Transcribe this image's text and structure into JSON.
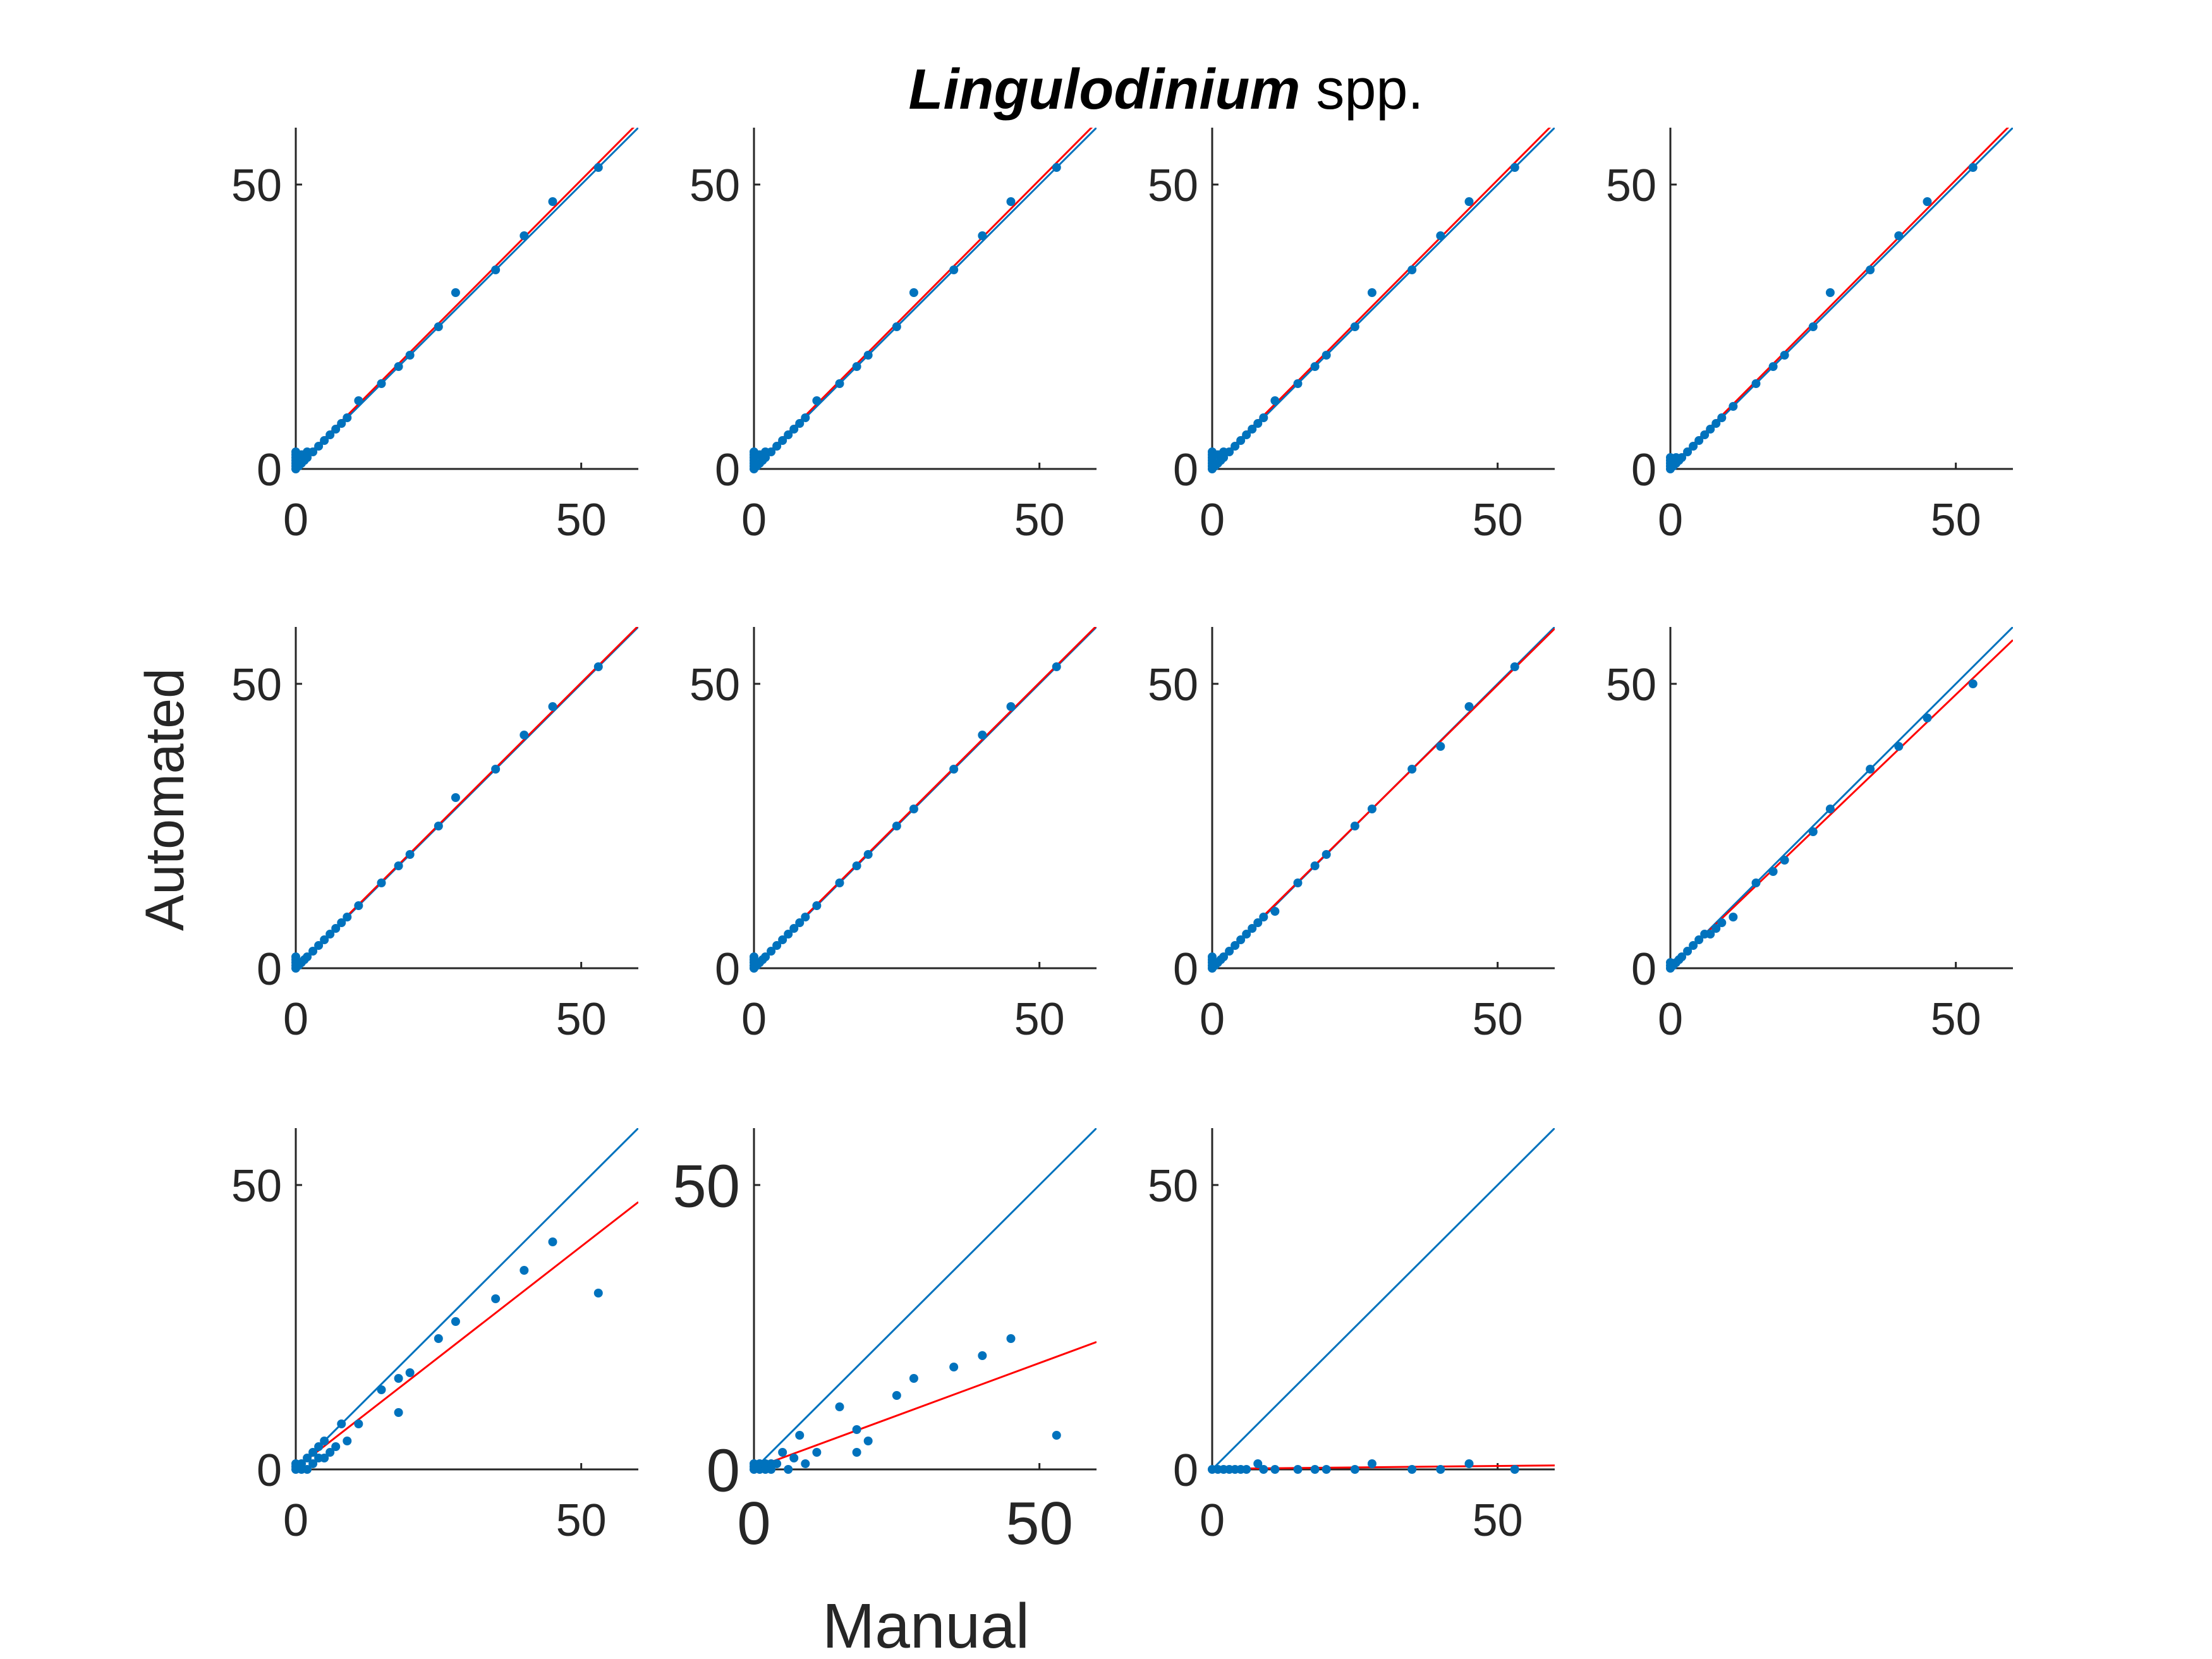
{
  "title": {
    "italic": "Lingulodinium",
    "rest": " spp."
  },
  "xlabel": "Manual",
  "ylabel": "Automated",
  "colors": {
    "points": "#0072BD",
    "identity_line": "#0072BD",
    "fit_line": "#FF0000",
    "axis": "#262626"
  },
  "chart_data": [
    {
      "type": "scatter",
      "xlim": [
        0,
        60
      ],
      "ylim": [
        0,
        60
      ],
      "xticks": [
        0,
        50
      ],
      "yticks": [
        0,
        50
      ],
      "fit": {
        "slope": 1.01,
        "intercept": 0.3
      },
      "points": [
        [
          0,
          0
        ],
        [
          0,
          0.5
        ],
        [
          0,
          1
        ],
        [
          0,
          1.5
        ],
        [
          0,
          2
        ],
        [
          0,
          2.5
        ],
        [
          0,
          3
        ],
        [
          0.5,
          0.5
        ],
        [
          1,
          1
        ],
        [
          1,
          2.5
        ],
        [
          1.5,
          1.5
        ],
        [
          2,
          2
        ],
        [
          2,
          3
        ],
        [
          3,
          3
        ],
        [
          4,
          4
        ],
        [
          5,
          5
        ],
        [
          6,
          6
        ],
        [
          7,
          7
        ],
        [
          8,
          8
        ],
        [
          9,
          9
        ],
        [
          11,
          12
        ],
        [
          15,
          15
        ],
        [
          18,
          18
        ],
        [
          20,
          20
        ],
        [
          25,
          25
        ],
        [
          28,
          31
        ],
        [
          35,
          35
        ],
        [
          40,
          41
        ],
        [
          45,
          47
        ],
        [
          53,
          53
        ]
      ]
    },
    {
      "type": "scatter",
      "xlim": [
        0,
        60
      ],
      "ylim": [
        0,
        60
      ],
      "xticks": [
        0,
        50
      ],
      "yticks": [
        0,
        50
      ],
      "fit": {
        "slope": 1.01,
        "intercept": 0.3
      },
      "points": [
        [
          0,
          0
        ],
        [
          0,
          0.5
        ],
        [
          0,
          1
        ],
        [
          0,
          1.5
        ],
        [
          0,
          2
        ],
        [
          0,
          2.5
        ],
        [
          0,
          3
        ],
        [
          0.5,
          0.5
        ],
        [
          1,
          1
        ],
        [
          1,
          2.5
        ],
        [
          1.5,
          1.5
        ],
        [
          2,
          2
        ],
        [
          2,
          3
        ],
        [
          3,
          3
        ],
        [
          4,
          4
        ],
        [
          5,
          5
        ],
        [
          6,
          6
        ],
        [
          7,
          7
        ],
        [
          8,
          8
        ],
        [
          9,
          9
        ],
        [
          11,
          12
        ],
        [
          15,
          15
        ],
        [
          18,
          18
        ],
        [
          20,
          20
        ],
        [
          25,
          25
        ],
        [
          28,
          31
        ],
        [
          35,
          35
        ],
        [
          40,
          41
        ],
        [
          45,
          47
        ],
        [
          53,
          53
        ]
      ]
    },
    {
      "type": "scatter",
      "xlim": [
        0,
        60
      ],
      "ylim": [
        0,
        60
      ],
      "xticks": [
        0,
        50
      ],
      "yticks": [
        0,
        50
      ],
      "fit": {
        "slope": 1.01,
        "intercept": 0.3
      },
      "points": [
        [
          0,
          0
        ],
        [
          0,
          0.5
        ],
        [
          0,
          1
        ],
        [
          0,
          1.5
        ],
        [
          0,
          2
        ],
        [
          0,
          2.5
        ],
        [
          0,
          3
        ],
        [
          0.5,
          0.5
        ],
        [
          1,
          1
        ],
        [
          1,
          2.5
        ],
        [
          1.5,
          1.5
        ],
        [
          2,
          2
        ],
        [
          2,
          3
        ],
        [
          3,
          3
        ],
        [
          4,
          4
        ],
        [
          5,
          5
        ],
        [
          6,
          6
        ],
        [
          7,
          7
        ],
        [
          8,
          8
        ],
        [
          9,
          9
        ],
        [
          11,
          12
        ],
        [
          15,
          15
        ],
        [
          18,
          18
        ],
        [
          20,
          20
        ],
        [
          25,
          25
        ],
        [
          28,
          31
        ],
        [
          35,
          35
        ],
        [
          40,
          41
        ],
        [
          45,
          47
        ],
        [
          53,
          53
        ]
      ]
    },
    {
      "type": "scatter",
      "xlim": [
        0,
        60
      ],
      "ylim": [
        0,
        60
      ],
      "xticks": [
        0,
        50
      ],
      "yticks": [
        0,
        50
      ],
      "fit": {
        "slope": 1.01,
        "intercept": 0.3
      },
      "points": [
        [
          0,
          0
        ],
        [
          0,
          0.5
        ],
        [
          0,
          1
        ],
        [
          0,
          1.5
        ],
        [
          0,
          2
        ],
        [
          0.5,
          0.5
        ],
        [
          1,
          1
        ],
        [
          1,
          2
        ],
        [
          1.5,
          1.5
        ],
        [
          2,
          2
        ],
        [
          3,
          3
        ],
        [
          4,
          4
        ],
        [
          5,
          5
        ],
        [
          6,
          6
        ],
        [
          7,
          7
        ],
        [
          8,
          8
        ],
        [
          9,
          9
        ],
        [
          11,
          11
        ],
        [
          15,
          15
        ],
        [
          18,
          18
        ],
        [
          20,
          20
        ],
        [
          25,
          25
        ],
        [
          28,
          31
        ],
        [
          35,
          35
        ],
        [
          40,
          41
        ],
        [
          45,
          47
        ],
        [
          53,
          53
        ]
      ]
    },
    {
      "type": "scatter",
      "xlim": [
        0,
        60
      ],
      "ylim": [
        0,
        60
      ],
      "xticks": [
        0,
        50
      ],
      "yticks": [
        0,
        50
      ],
      "fit": {
        "slope": 1.0,
        "intercept": 0.2
      },
      "points": [
        [
          0,
          0
        ],
        [
          0,
          0.5
        ],
        [
          0,
          1
        ],
        [
          0,
          1.5
        ],
        [
          0,
          2
        ],
        [
          0.5,
          0.5
        ],
        [
          1,
          1
        ],
        [
          1.5,
          1.5
        ],
        [
          2,
          2
        ],
        [
          3,
          3
        ],
        [
          4,
          4
        ],
        [
          5,
          5
        ],
        [
          6,
          6
        ],
        [
          7,
          7
        ],
        [
          8,
          8
        ],
        [
          9,
          9
        ],
        [
          11,
          11
        ],
        [
          15,
          15
        ],
        [
          18,
          18
        ],
        [
          20,
          20
        ],
        [
          25,
          25
        ],
        [
          28,
          30
        ],
        [
          35,
          35
        ],
        [
          40,
          41
        ],
        [
          45,
          46
        ],
        [
          53,
          53
        ]
      ]
    },
    {
      "type": "scatter",
      "xlim": [
        0,
        60
      ],
      "ylim": [
        0,
        60
      ],
      "xticks": [
        0,
        50
      ],
      "yticks": [
        0,
        50
      ],
      "fit": {
        "slope": 1.0,
        "intercept": 0.2
      },
      "points": [
        [
          0,
          0
        ],
        [
          0,
          0.5
        ],
        [
          0,
          1
        ],
        [
          0,
          1.5
        ],
        [
          0,
          2
        ],
        [
          0.5,
          0.5
        ],
        [
          1,
          1
        ],
        [
          1.5,
          1.5
        ],
        [
          2,
          2
        ],
        [
          3,
          3
        ],
        [
          4,
          4
        ],
        [
          5,
          5
        ],
        [
          6,
          6
        ],
        [
          7,
          7
        ],
        [
          8,
          8
        ],
        [
          9,
          9
        ],
        [
          11,
          11
        ],
        [
          15,
          15
        ],
        [
          18,
          18
        ],
        [
          20,
          20
        ],
        [
          25,
          25
        ],
        [
          28,
          28
        ],
        [
          35,
          35
        ],
        [
          40,
          41
        ],
        [
          45,
          46
        ],
        [
          53,
          53
        ]
      ]
    },
    {
      "type": "scatter",
      "xlim": [
        0,
        60
      ],
      "ylim": [
        0,
        60
      ],
      "xticks": [
        0,
        50
      ],
      "yticks": [
        0,
        50
      ],
      "fit": {
        "slope": 0.99,
        "intercept": 0.3
      },
      "points": [
        [
          0,
          0
        ],
        [
          0,
          0.5
        ],
        [
          0,
          1
        ],
        [
          0,
          1.5
        ],
        [
          0,
          2
        ],
        [
          0.5,
          0.5
        ],
        [
          1,
          1
        ],
        [
          1.5,
          1.5
        ],
        [
          2,
          2
        ],
        [
          3,
          3
        ],
        [
          4,
          4
        ],
        [
          5,
          5
        ],
        [
          6,
          6
        ],
        [
          7,
          7
        ],
        [
          8,
          8
        ],
        [
          9,
          9
        ],
        [
          11,
          10
        ],
        [
          15,
          15
        ],
        [
          18,
          18
        ],
        [
          20,
          20
        ],
        [
          25,
          25
        ],
        [
          28,
          28
        ],
        [
          35,
          35
        ],
        [
          40,
          39
        ],
        [
          45,
          46
        ],
        [
          53,
          53
        ]
      ]
    },
    {
      "type": "scatter",
      "xlim": [
        0,
        60
      ],
      "ylim": [
        0,
        60
      ],
      "xticks": [
        0,
        50
      ],
      "yticks": [
        0,
        50
      ],
      "fit": {
        "slope": 0.96,
        "intercept": 0.1
      },
      "points": [
        [
          0,
          0
        ],
        [
          0,
          0.5
        ],
        [
          0,
          1
        ],
        [
          0.5,
          0.5
        ],
        [
          1,
          1
        ],
        [
          1.5,
          1.5
        ],
        [
          2,
          2
        ],
        [
          3,
          3
        ],
        [
          4,
          4
        ],
        [
          5,
          5
        ],
        [
          6,
          6
        ],
        [
          7,
          6
        ],
        [
          8,
          7
        ],
        [
          9,
          8
        ],
        [
          11,
          9
        ],
        [
          15,
          15
        ],
        [
          18,
          17
        ],
        [
          20,
          19
        ],
        [
          25,
          24
        ],
        [
          28,
          28
        ],
        [
          35,
          35
        ],
        [
          40,
          39
        ],
        [
          45,
          44
        ],
        [
          53,
          50
        ]
      ]
    },
    {
      "type": "scatter",
      "xlim": [
        0,
        60
      ],
      "ylim": [
        0,
        60
      ],
      "xticks": [
        0,
        50
      ],
      "yticks": [
        0,
        50
      ],
      "fit": {
        "slope": 0.78,
        "intercept": 0.2
      },
      "points": [
        [
          0,
          0
        ],
        [
          0,
          0.5
        ],
        [
          0,
          1
        ],
        [
          1,
          0
        ],
        [
          1,
          1
        ],
        [
          2,
          0
        ],
        [
          2,
          2
        ],
        [
          3,
          3
        ],
        [
          3,
          1
        ],
        [
          4,
          2
        ],
        [
          4,
          4
        ],
        [
          5,
          2
        ],
        [
          5,
          5
        ],
        [
          6,
          3
        ],
        [
          7,
          4
        ],
        [
          8,
          8
        ],
        [
          9,
          5
        ],
        [
          11,
          8
        ],
        [
          15,
          14
        ],
        [
          18,
          10
        ],
        [
          18,
          16
        ],
        [
          20,
          17
        ],
        [
          25,
          23
        ],
        [
          28,
          26
        ],
        [
          35,
          30
        ],
        [
          40,
          35
        ],
        [
          45,
          40
        ],
        [
          53,
          31
        ]
      ]
    },
    {
      "type": "scatter",
      "xlim": [
        0,
        60
      ],
      "ylim": [
        0,
        60
      ],
      "xticks": [
        0,
        50
      ],
      "yticks": [
        0,
        50
      ],
      "fit": {
        "slope": 0.37,
        "intercept": 0.2
      },
      "points": [
        [
          0,
          0
        ],
        [
          0,
          0.5
        ],
        [
          0,
          1
        ],
        [
          1,
          0
        ],
        [
          1,
          1
        ],
        [
          2,
          0
        ],
        [
          2,
          1
        ],
        [
          3,
          0
        ],
        [
          3,
          1
        ],
        [
          4,
          1
        ],
        [
          5,
          3
        ],
        [
          6,
          0
        ],
        [
          7,
          2
        ],
        [
          8,
          6
        ],
        [
          9,
          1
        ],
        [
          11,
          3
        ],
        [
          15,
          11
        ],
        [
          18,
          3
        ],
        [
          18,
          7
        ],
        [
          20,
          5
        ],
        [
          25,
          13
        ],
        [
          28,
          16
        ],
        [
          35,
          18
        ],
        [
          40,
          20
        ],
        [
          45,
          23
        ],
        [
          53,
          6
        ]
      ]
    },
    {
      "type": "scatter",
      "xlim": [
        0,
        60
      ],
      "ylim": [
        0,
        60
      ],
      "xticks": [
        0,
        50
      ],
      "yticks": [
        0,
        50
      ],
      "fit": {
        "slope": 0.01,
        "intercept": 0.1
      },
      "points": [
        [
          0,
          0
        ],
        [
          1,
          0
        ],
        [
          2,
          0
        ],
        [
          3,
          0
        ],
        [
          4,
          0
        ],
        [
          5,
          0
        ],
        [
          6,
          0
        ],
        [
          8,
          1
        ],
        [
          9,
          0
        ],
        [
          11,
          0
        ],
        [
          15,
          0
        ],
        [
          18,
          0
        ],
        [
          20,
          0
        ],
        [
          25,
          0
        ],
        [
          28,
          1
        ],
        [
          35,
          0
        ],
        [
          40,
          0
        ],
        [
          45,
          1
        ],
        [
          53,
          0
        ]
      ]
    }
  ]
}
